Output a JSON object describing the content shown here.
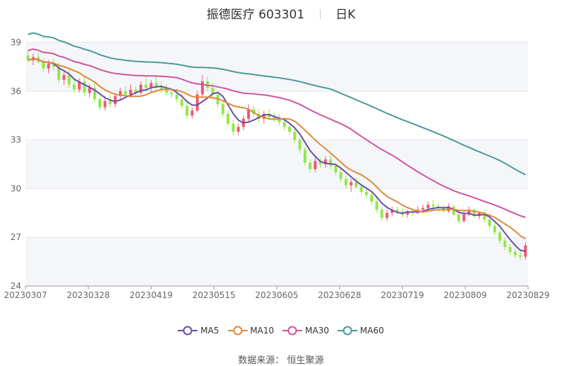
{
  "header": {
    "name": "振德医疗",
    "code": "603301",
    "period": "日K"
  },
  "source": "数据来源： 恒生聚源",
  "colors": {
    "up": "#ef5a6f",
    "down": "#91e84a",
    "ma5": "#6b4fa8",
    "ma10": "#e08a3a",
    "ma30": "#d055a0",
    "ma60": "#4a9a9a",
    "band": "#f5f6fa",
    "grid": "#e6e6e6"
  },
  "chart_data": {
    "type": "candlestick",
    "title": "振德医疗 603301 日K",
    "ylim": [
      24,
      39
    ],
    "yticks": [
      24,
      27,
      30,
      33,
      36,
      39
    ],
    "x_labels": [
      "20230307",
      "20230328",
      "20230419",
      "20230515",
      "20230605",
      "20230628",
      "20230719",
      "20230809",
      "20230829"
    ],
    "legend": [
      "MA5",
      "MA10",
      "MA30",
      "MA60"
    ],
    "candles": [
      {
        "o": 38.2,
        "h": 38.5,
        "l": 37.8,
        "c": 37.9
      },
      {
        "o": 37.9,
        "h": 38.3,
        "l": 37.6,
        "c": 38.1
      },
      {
        "o": 38.1,
        "h": 38.4,
        "l": 37.7,
        "c": 37.8
      },
      {
        "o": 37.8,
        "h": 38.0,
        "l": 37.2,
        "c": 37.4
      },
      {
        "o": 37.4,
        "h": 37.9,
        "l": 37.1,
        "c": 37.7
      },
      {
        "o": 37.7,
        "h": 38.0,
        "l": 37.3,
        "c": 37.5
      },
      {
        "o": 37.5,
        "h": 37.8,
        "l": 36.5,
        "c": 36.7
      },
      {
        "o": 36.7,
        "h": 37.2,
        "l": 36.4,
        "c": 37.0
      },
      {
        "o": 37.0,
        "h": 37.3,
        "l": 36.2,
        "c": 36.4
      },
      {
        "o": 36.4,
        "h": 36.7,
        "l": 35.9,
        "c": 36.1
      },
      {
        "o": 36.1,
        "h": 36.8,
        "l": 35.9,
        "c": 36.6
      },
      {
        "o": 36.6,
        "h": 36.9,
        "l": 35.7,
        "c": 35.9
      },
      {
        "o": 35.9,
        "h": 36.4,
        "l": 35.6,
        "c": 36.2
      },
      {
        "o": 36.2,
        "h": 36.5,
        "l": 35.3,
        "c": 35.5
      },
      {
        "o": 35.5,
        "h": 35.9,
        "l": 34.8,
        "c": 35.0
      },
      {
        "o": 35.0,
        "h": 35.7,
        "l": 34.8,
        "c": 35.4
      },
      {
        "o": 35.4,
        "h": 35.8,
        "l": 35.0,
        "c": 35.2
      },
      {
        "o": 35.2,
        "h": 35.9,
        "l": 35.0,
        "c": 35.7
      },
      {
        "o": 35.7,
        "h": 36.2,
        "l": 35.4,
        "c": 36.0
      },
      {
        "o": 36.0,
        "h": 36.3,
        "l": 35.6,
        "c": 35.8
      },
      {
        "o": 35.8,
        "h": 36.4,
        "l": 35.6,
        "c": 36.1
      },
      {
        "o": 36.1,
        "h": 36.3,
        "l": 35.7,
        "c": 35.9
      },
      {
        "o": 35.9,
        "h": 36.6,
        "l": 35.8,
        "c": 36.4
      },
      {
        "o": 36.4,
        "h": 36.8,
        "l": 36.0,
        "c": 36.2
      },
      {
        "o": 36.2,
        "h": 36.7,
        "l": 35.9,
        "c": 36.5
      },
      {
        "o": 36.5,
        "h": 37.0,
        "l": 36.1,
        "c": 36.3
      },
      {
        "o": 36.3,
        "h": 36.6,
        "l": 35.9,
        "c": 36.1
      },
      {
        "o": 36.1,
        "h": 36.4,
        "l": 35.7,
        "c": 35.9
      },
      {
        "o": 35.9,
        "h": 36.2,
        "l": 35.6,
        "c": 35.8
      },
      {
        "o": 35.8,
        "h": 36.1,
        "l": 35.3,
        "c": 35.5
      },
      {
        "o": 35.5,
        "h": 35.8,
        "l": 34.9,
        "c": 35.1
      },
      {
        "o": 35.1,
        "h": 35.4,
        "l": 34.3,
        "c": 34.5
      },
      {
        "o": 34.5,
        "h": 35.0,
        "l": 34.3,
        "c": 34.8
      },
      {
        "o": 34.8,
        "h": 36.0,
        "l": 34.7,
        "c": 35.8
      },
      {
        "o": 35.8,
        "h": 37.0,
        "l": 35.6,
        "c": 36.6
      },
      {
        "o": 36.6,
        "h": 36.9,
        "l": 36.0,
        "c": 36.2
      },
      {
        "o": 36.2,
        "h": 36.5,
        "l": 35.6,
        "c": 35.8
      },
      {
        "o": 35.8,
        "h": 36.0,
        "l": 35.0,
        "c": 35.2
      },
      {
        "o": 35.2,
        "h": 35.4,
        "l": 34.4,
        "c": 34.6
      },
      {
        "o": 34.6,
        "h": 34.8,
        "l": 33.8,
        "c": 34.0
      },
      {
        "o": 34.0,
        "h": 34.2,
        "l": 33.3,
        "c": 33.5
      },
      {
        "o": 33.5,
        "h": 34.0,
        "l": 33.3,
        "c": 33.8
      },
      {
        "o": 33.8,
        "h": 34.5,
        "l": 33.6,
        "c": 34.3
      },
      {
        "o": 34.3,
        "h": 35.2,
        "l": 34.1,
        "c": 34.9
      },
      {
        "o": 34.9,
        "h": 35.1,
        "l": 34.4,
        "c": 34.6
      },
      {
        "o": 34.6,
        "h": 34.9,
        "l": 34.1,
        "c": 34.3
      },
      {
        "o": 34.3,
        "h": 34.8,
        "l": 34.0,
        "c": 34.6
      },
      {
        "o": 34.6,
        "h": 34.9,
        "l": 34.2,
        "c": 34.4
      },
      {
        "o": 34.4,
        "h": 34.7,
        "l": 34.1,
        "c": 34.3
      },
      {
        "o": 34.3,
        "h": 34.6,
        "l": 33.9,
        "c": 34.1
      },
      {
        "o": 34.1,
        "h": 34.4,
        "l": 33.6,
        "c": 33.8
      },
      {
        "o": 33.8,
        "h": 34.0,
        "l": 33.3,
        "c": 33.5
      },
      {
        "o": 33.5,
        "h": 33.7,
        "l": 32.8,
        "c": 33.0
      },
      {
        "o": 33.0,
        "h": 33.2,
        "l": 32.2,
        "c": 32.4
      },
      {
        "o": 32.4,
        "h": 32.6,
        "l": 31.4,
        "c": 31.6
      },
      {
        "o": 31.6,
        "h": 31.8,
        "l": 31.0,
        "c": 31.2
      },
      {
        "o": 31.2,
        "h": 31.9,
        "l": 31.0,
        "c": 31.7
      },
      {
        "o": 31.7,
        "h": 31.9,
        "l": 31.3,
        "c": 31.5
      },
      {
        "o": 31.5,
        "h": 32.0,
        "l": 31.3,
        "c": 31.8
      },
      {
        "o": 31.8,
        "h": 32.1,
        "l": 31.2,
        "c": 31.4
      },
      {
        "o": 31.4,
        "h": 31.6,
        "l": 30.8,
        "c": 31.0
      },
      {
        "o": 31.0,
        "h": 31.3,
        "l": 30.4,
        "c": 30.6
      },
      {
        "o": 30.6,
        "h": 30.8,
        "l": 30.0,
        "c": 30.2
      },
      {
        "o": 30.2,
        "h": 30.6,
        "l": 29.8,
        "c": 30.4
      },
      {
        "o": 30.4,
        "h": 30.7,
        "l": 30.0,
        "c": 30.1
      },
      {
        "o": 30.1,
        "h": 30.3,
        "l": 29.6,
        "c": 29.8
      },
      {
        "o": 29.8,
        "h": 30.0,
        "l": 29.4,
        "c": 29.6
      },
      {
        "o": 29.6,
        "h": 29.8,
        "l": 29.0,
        "c": 29.2
      },
      {
        "o": 29.2,
        "h": 29.4,
        "l": 28.5,
        "c": 28.7
      },
      {
        "o": 28.7,
        "h": 28.9,
        "l": 28.0,
        "c": 28.2
      },
      {
        "o": 28.2,
        "h": 28.7,
        "l": 28.0,
        "c": 28.5
      },
      {
        "o": 28.5,
        "h": 28.9,
        "l": 28.3,
        "c": 28.7
      },
      {
        "o": 28.7,
        "h": 28.9,
        "l": 28.4,
        "c": 28.6
      },
      {
        "o": 28.6,
        "h": 28.8,
        "l": 28.2,
        "c": 28.4
      },
      {
        "o": 28.4,
        "h": 28.7,
        "l": 28.2,
        "c": 28.6
      },
      {
        "o": 28.6,
        "h": 28.8,
        "l": 28.3,
        "c": 28.5
      },
      {
        "o": 28.5,
        "h": 28.9,
        "l": 28.4,
        "c": 28.7
      },
      {
        "o": 28.7,
        "h": 29.0,
        "l": 28.5,
        "c": 28.8
      },
      {
        "o": 28.8,
        "h": 29.2,
        "l": 28.6,
        "c": 29.0
      },
      {
        "o": 29.0,
        "h": 29.3,
        "l": 28.7,
        "c": 28.9
      },
      {
        "o": 28.9,
        "h": 29.1,
        "l": 28.6,
        "c": 28.8
      },
      {
        "o": 28.8,
        "h": 29.0,
        "l": 28.5,
        "c": 28.6
      },
      {
        "o": 28.6,
        "h": 29.1,
        "l": 28.5,
        "c": 28.9
      },
      {
        "o": 28.9,
        "h": 29.0,
        "l": 28.3,
        "c": 28.4
      },
      {
        "o": 28.4,
        "h": 28.7,
        "l": 27.8,
        "c": 28.0
      },
      {
        "o": 28.0,
        "h": 28.6,
        "l": 27.9,
        "c": 28.4
      },
      {
        "o": 28.4,
        "h": 28.9,
        "l": 28.3,
        "c": 28.7
      },
      {
        "o": 28.7,
        "h": 28.8,
        "l": 28.2,
        "c": 28.3
      },
      {
        "o": 28.3,
        "h": 28.6,
        "l": 28.1,
        "c": 28.5
      },
      {
        "o": 28.5,
        "h": 28.7,
        "l": 27.9,
        "c": 28.1
      },
      {
        "o": 28.1,
        "h": 28.3,
        "l": 27.5,
        "c": 27.7
      },
      {
        "o": 27.7,
        "h": 27.9,
        "l": 27.1,
        "c": 27.3
      },
      {
        "o": 27.3,
        "h": 27.5,
        "l": 26.6,
        "c": 26.8
      },
      {
        "o": 26.8,
        "h": 27.0,
        "l": 26.2,
        "c": 26.4
      },
      {
        "o": 26.4,
        "h": 26.6,
        "l": 25.9,
        "c": 26.1
      },
      {
        "o": 26.1,
        "h": 26.3,
        "l": 25.7,
        "c": 25.9
      },
      {
        "o": 25.9,
        "h": 26.2,
        "l": 25.6,
        "c": 25.8
      },
      {
        "o": 25.8,
        "h": 26.7,
        "l": 25.6,
        "c": 26.5
      }
    ]
  }
}
